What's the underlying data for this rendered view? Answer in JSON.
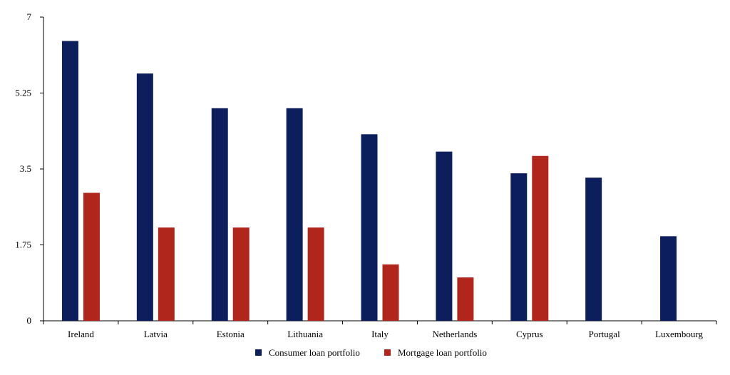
{
  "chart_data": {
    "type": "bar",
    "categories": [
      "Ireland",
      "Latvia",
      "Estonia",
      "Lithuania",
      "Italy",
      "Netherlands",
      "Cyprus",
      "Portugal",
      "Luxembourg"
    ],
    "series": [
      {
        "name": "Consumer loan portfolio",
        "color": "#0c1f5c",
        "values": [
          6.45,
          5.7,
          4.9,
          4.9,
          4.3,
          3.9,
          3.4,
          3.3,
          1.95
        ]
      },
      {
        "name": "Mortgage loan portfolio",
        "color": "#b0261c",
        "values": [
          2.95,
          2.15,
          2.15,
          2.15,
          1.3,
          1.0,
          3.8,
          null,
          null
        ]
      }
    ],
    "y_ticks": [
      0,
      1.75,
      3.5,
      5.25,
      7
    ],
    "y_tick_labels": [
      "0",
      "1.75",
      "3.5",
      "5.25",
      "7"
    ],
    "ylim": [
      0,
      7
    ],
    "title": "",
    "xlabel": "",
    "ylabel": "",
    "grid": false,
    "legend_position": "bottom-center"
  }
}
